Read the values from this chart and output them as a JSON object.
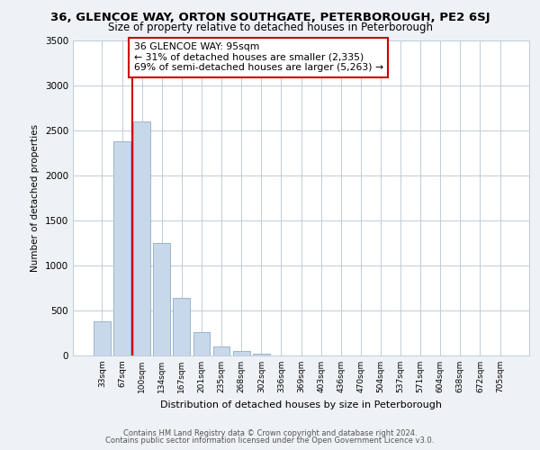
{
  "title_line1": "36, GLENCOE WAY, ORTON SOUTHGATE, PETERBOROUGH, PE2 6SJ",
  "title_line2": "Size of property relative to detached houses in Peterborough",
  "xlabel": "Distribution of detached houses by size in Peterborough",
  "ylabel": "Number of detached properties",
  "bar_labels": [
    "33sqm",
    "67sqm",
    "100sqm",
    "134sqm",
    "167sqm",
    "201sqm",
    "235sqm",
    "268sqm",
    "302sqm",
    "336sqm",
    "369sqm",
    "403sqm",
    "436sqm",
    "470sqm",
    "504sqm",
    "537sqm",
    "571sqm",
    "604sqm",
    "638sqm",
    "672sqm",
    "705sqm"
  ],
  "bar_values": [
    380,
    2380,
    2600,
    1250,
    640,
    260,
    105,
    50,
    20,
    5,
    2,
    1,
    0,
    0,
    0,
    0,
    0,
    0,
    0,
    0,
    0
  ],
  "bar_color": "#c8d8eb",
  "bar_edge_color": "#9ab5cc",
  "vline_color": "#cc0000",
  "annotation_text": "36 GLENCOE WAY: 95sqm\n← 31% of detached houses are smaller (2,335)\n69% of semi-detached houses are larger (5,263) →",
  "annotation_box_color": "#ffffff",
  "annotation_box_edge": "#cc0000",
  "ylim": [
    0,
    3500
  ],
  "yticks": [
    0,
    500,
    1000,
    1500,
    2000,
    2500,
    3000,
    3500
  ],
  "footer_line1": "Contains HM Land Registry data © Crown copyright and database right 2024.",
  "footer_line2": "Contains public sector information licensed under the Open Government Licence v3.0.",
  "background_color": "#eef2f7",
  "plot_bg_color": "#ffffff",
  "grid_color": "#c0ccd8"
}
